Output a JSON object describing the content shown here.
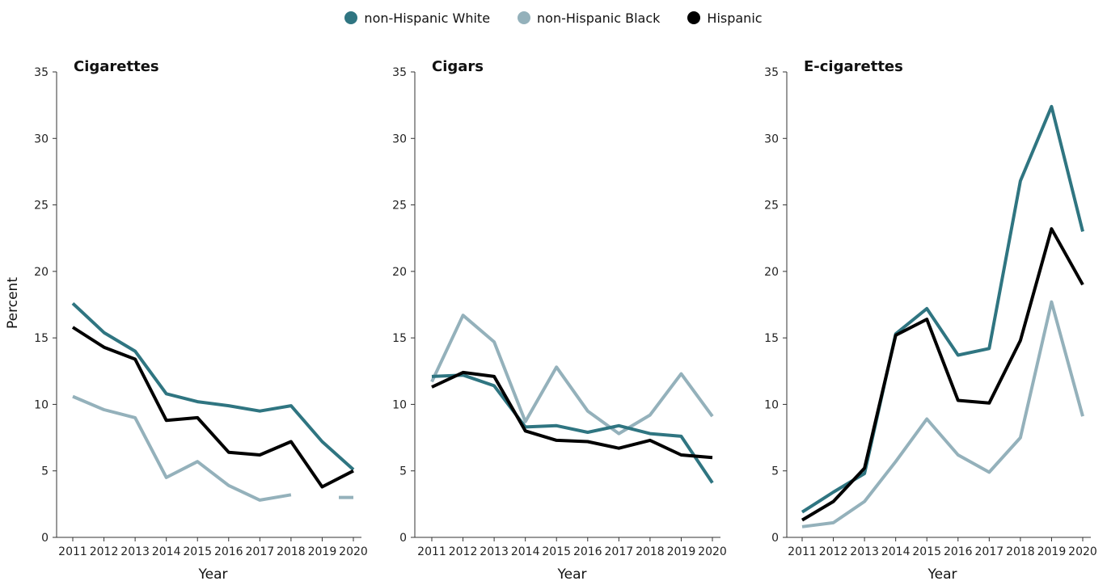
{
  "legend": {
    "items": [
      {
        "label": "non-Hispanic White",
        "color": "#2f7581"
      },
      {
        "label": "non-Hispanic Black",
        "color": "#94b1bb"
      },
      {
        "label": "Hispanic",
        "color": "#000000"
      }
    ]
  },
  "chart_data": [
    {
      "type": "line",
      "title": "Cigarettes",
      "xlabel": "Year",
      "ylabel": "Percent",
      "ylim": [
        0,
        35
      ],
      "yticks": [
        0,
        5,
        10,
        15,
        20,
        25,
        30,
        35
      ],
      "x": [
        "2011",
        "2012",
        "2013",
        "2014",
        "2015",
        "2016",
        "2017",
        "2018",
        "2019",
        "2020"
      ],
      "series": [
        {
          "name": "non-Hispanic White",
          "color": "#2f7581",
          "values": [
            17.6,
            15.4,
            14.0,
            10.8,
            10.2,
            9.9,
            9.5,
            9.9,
            7.2,
            5.1
          ]
        },
        {
          "name": "non-Hispanic Black",
          "color": "#94b1bb",
          "values": [
            10.6,
            9.6,
            9.0,
            4.5,
            5.7,
            3.9,
            2.8,
            3.2,
            null,
            3.0
          ]
        },
        {
          "name": "Hispanic",
          "color": "#000000",
          "values": [
            15.8,
            14.3,
            13.4,
            8.8,
            9.0,
            6.4,
            6.2,
            7.2,
            3.8,
            5.0
          ]
        }
      ]
    },
    {
      "type": "line",
      "title": "Cigars",
      "xlabel": "Year",
      "ylabel": "",
      "ylim": [
        0,
        35
      ],
      "yticks": [
        0,
        5,
        10,
        15,
        20,
        25,
        30,
        35
      ],
      "x": [
        "2011",
        "2012",
        "2013",
        "2014",
        "2015",
        "2016",
        "2017",
        "2018",
        "2019",
        "2020"
      ],
      "series": [
        {
          "name": "non-Hispanic White",
          "color": "#2f7581",
          "values": [
            12.1,
            12.2,
            11.4,
            8.3,
            8.4,
            7.9,
            8.4,
            7.8,
            7.6,
            4.1
          ]
        },
        {
          "name": "non-Hispanic Black",
          "color": "#94b1bb",
          "values": [
            11.7,
            16.7,
            14.7,
            8.7,
            12.8,
            9.5,
            7.8,
            9.2,
            12.3,
            9.1
          ]
        },
        {
          "name": "Hispanic",
          "color": "#000000",
          "values": [
            11.3,
            12.4,
            12.1,
            8.0,
            7.3,
            7.2,
            6.7,
            7.3,
            6.2,
            6.0
          ]
        }
      ]
    },
    {
      "type": "line",
      "title": "E-cigarettes",
      "xlabel": "Year",
      "ylabel": "",
      "ylim": [
        0,
        35
      ],
      "yticks": [
        0,
        5,
        10,
        15,
        20,
        25,
        30,
        35
      ],
      "x": [
        "2011",
        "2012",
        "2013",
        "2014",
        "2015",
        "2016",
        "2017",
        "2018",
        "2019",
        "2020"
      ],
      "series": [
        {
          "name": "non-Hispanic White",
          "color": "#2f7581",
          "values": [
            1.9,
            3.4,
            4.8,
            15.3,
            17.2,
            13.7,
            14.2,
            26.8,
            32.4,
            23.0
          ]
        },
        {
          "name": "non-Hispanic Black",
          "color": "#94b1bb",
          "values": [
            0.8,
            1.1,
            2.7,
            5.7,
            8.9,
            6.2,
            4.9,
            7.5,
            17.7,
            9.1
          ]
        },
        {
          "name": "Hispanic",
          "color": "#000000",
          "values": [
            1.3,
            2.7,
            5.2,
            15.2,
            16.4,
            10.3,
            10.1,
            14.8,
            23.2,
            19.0
          ]
        }
      ]
    }
  ]
}
